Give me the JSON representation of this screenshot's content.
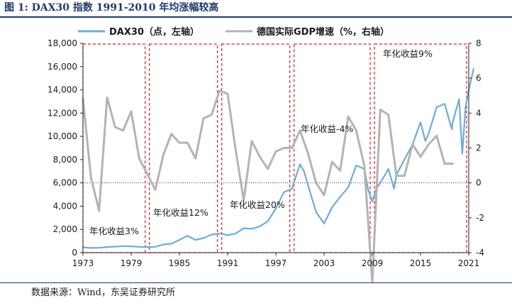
{
  "header": {
    "title": "图 1:  DAX30 指数 1991-2010 年均涨幅较高"
  },
  "footer": {
    "source": "数据来源：Wind，东吴证券研究所"
  },
  "colors": {
    "dax": "#6baed6",
    "gdp": "#b3b3b3",
    "box": "#e41a1c",
    "title": "#1f3a6b"
  },
  "chart_data": {
    "type": "line",
    "x_range": [
      1973,
      2021
    ],
    "x_ticks": [
      "1973",
      "1979",
      "1985",
      "1991",
      "1997",
      "2003",
      "2009",
      "2015",
      "2021"
    ],
    "y_left": {
      "range": [
        0,
        18000
      ],
      "ticks": [
        "0",
        "2,000",
        "4,000",
        "6,000",
        "8,000",
        "10,000",
        "12,000",
        "14,000",
        "16,000",
        "18,000"
      ]
    },
    "y_right": {
      "range": [
        -4,
        8
      ],
      "ticks": [
        "-4",
        "-2",
        "0",
        "2",
        "4",
        "6",
        "8"
      ]
    },
    "series": [
      {
        "name": "DAX30（点，左轴）",
        "axis": "left",
        "points": [
          [
            1973,
            450
          ],
          [
            1974,
            400
          ],
          [
            1975,
            420
          ],
          [
            1976,
            480
          ],
          [
            1977,
            520
          ],
          [
            1978,
            560
          ],
          [
            1979,
            540
          ],
          [
            1980,
            500
          ],
          [
            1981,
            480
          ],
          [
            1982,
            500
          ],
          [
            1983,
            700
          ],
          [
            1984,
            770
          ],
          [
            1985,
            1100
          ],
          [
            1986,
            1450
          ],
          [
            1987,
            1100
          ],
          [
            1988,
            1250
          ],
          [
            1989,
            1550
          ],
          [
            1990,
            1650
          ],
          [
            1991,
            1500
          ],
          [
            1992,
            1650
          ],
          [
            1993,
            2100
          ],
          [
            1994,
            2050
          ],
          [
            1995,
            2250
          ],
          [
            1996,
            2700
          ],
          [
            1997,
            3800
          ],
          [
            1998,
            5200
          ],
          [
            1999,
            5500
          ],
          [
            2000,
            7600
          ],
          [
            2000.5,
            7000
          ],
          [
            2001,
            5800
          ],
          [
            2002,
            3500
          ],
          [
            2003,
            2500
          ],
          [
            2004,
            3900
          ],
          [
            2005,
            4800
          ],
          [
            2006,
            5600
          ],
          [
            2007,
            7500
          ],
          [
            2008,
            7200
          ],
          [
            2008.5,
            5400
          ],
          [
            2009,
            4400
          ],
          [
            2009.5,
            5500
          ],
          [
            2010,
            6000
          ],
          [
            2011,
            7200
          ],
          [
            2011.7,
            5500
          ],
          [
            2012,
            6700
          ],
          [
            2013,
            8000
          ],
          [
            2014,
            9300
          ],
          [
            2015,
            11200
          ],
          [
            2015.6,
            9600
          ],
          [
            2016,
            10200
          ],
          [
            2017,
            12500
          ],
          [
            2018,
            12800
          ],
          [
            2018.9,
            10600
          ],
          [
            2019,
            11200
          ],
          [
            2019.8,
            13200
          ],
          [
            2020.2,
            8500
          ],
          [
            2020.6,
            12500
          ],
          [
            2021,
            14000
          ],
          [
            2021.6,
            15800
          ]
        ]
      },
      {
        "name": "德国实际GDP增速（%，右轴）",
        "axis": "right",
        "points": [
          [
            1973,
            4.8
          ],
          [
            1974,
            0.3
          ],
          [
            1975,
            -1.6
          ],
          [
            1976,
            4.9
          ],
          [
            1977,
            3.2
          ],
          [
            1978,
            3.0
          ],
          [
            1979,
            4.1
          ],
          [
            1980,
            1.4
          ],
          [
            1981,
            0.5
          ],
          [
            1982,
            -0.4
          ],
          [
            1983,
            1.6
          ],
          [
            1984,
            2.8
          ],
          [
            1985,
            2.3
          ],
          [
            1986,
            2.3
          ],
          [
            1987,
            1.4
          ],
          [
            1988,
            3.7
          ],
          [
            1989,
            3.9
          ],
          [
            1990,
            5.3
          ],
          [
            1991,
            5.1
          ],
          [
            1992,
            1.9
          ],
          [
            1993,
            -1.0
          ],
          [
            1994,
            2.4
          ],
          [
            1995,
            1.5
          ],
          [
            1996,
            0.8
          ],
          [
            1997,
            1.8
          ],
          [
            1998,
            2.0
          ],
          [
            1999,
            2.0
          ],
          [
            2000,
            3.0
          ],
          [
            2001,
            1.7
          ],
          [
            2002,
            0.0
          ],
          [
            2003,
            -0.7
          ],
          [
            2004,
            1.2
          ],
          [
            2005,
            0.7
          ],
          [
            2006,
            3.8
          ],
          [
            2007,
            3.0
          ],
          [
            2008,
            1.0
          ],
          [
            2009,
            -5.7
          ],
          [
            2010,
            4.2
          ],
          [
            2011,
            3.9
          ],
          [
            2012,
            0.4
          ],
          [
            2013,
            0.4
          ],
          [
            2014,
            2.2
          ],
          [
            2015,
            1.5
          ],
          [
            2016,
            2.2
          ],
          [
            2017,
            2.7
          ],
          [
            2018,
            1.1
          ],
          [
            2019,
            1.1
          ]
        ]
      }
    ],
    "periods": [
      {
        "start": 1973,
        "end": 1981,
        "label": "年化收益3%"
      },
      {
        "start": 1981,
        "end": 1990,
        "label": "年化收益12%"
      },
      {
        "start": 1990,
        "end": 1999,
        "label": "年化收益20%"
      },
      {
        "start": 1999,
        "end": 2009,
        "label": "年化收益-4%"
      },
      {
        "start": 2009,
        "end": 2021,
        "label": "年化收益9%"
      }
    ],
    "legend": [
      "DAX30（点，左轴）",
      "德国实际GDP增速（%，右轴）"
    ],
    "legend_position": "top"
  }
}
